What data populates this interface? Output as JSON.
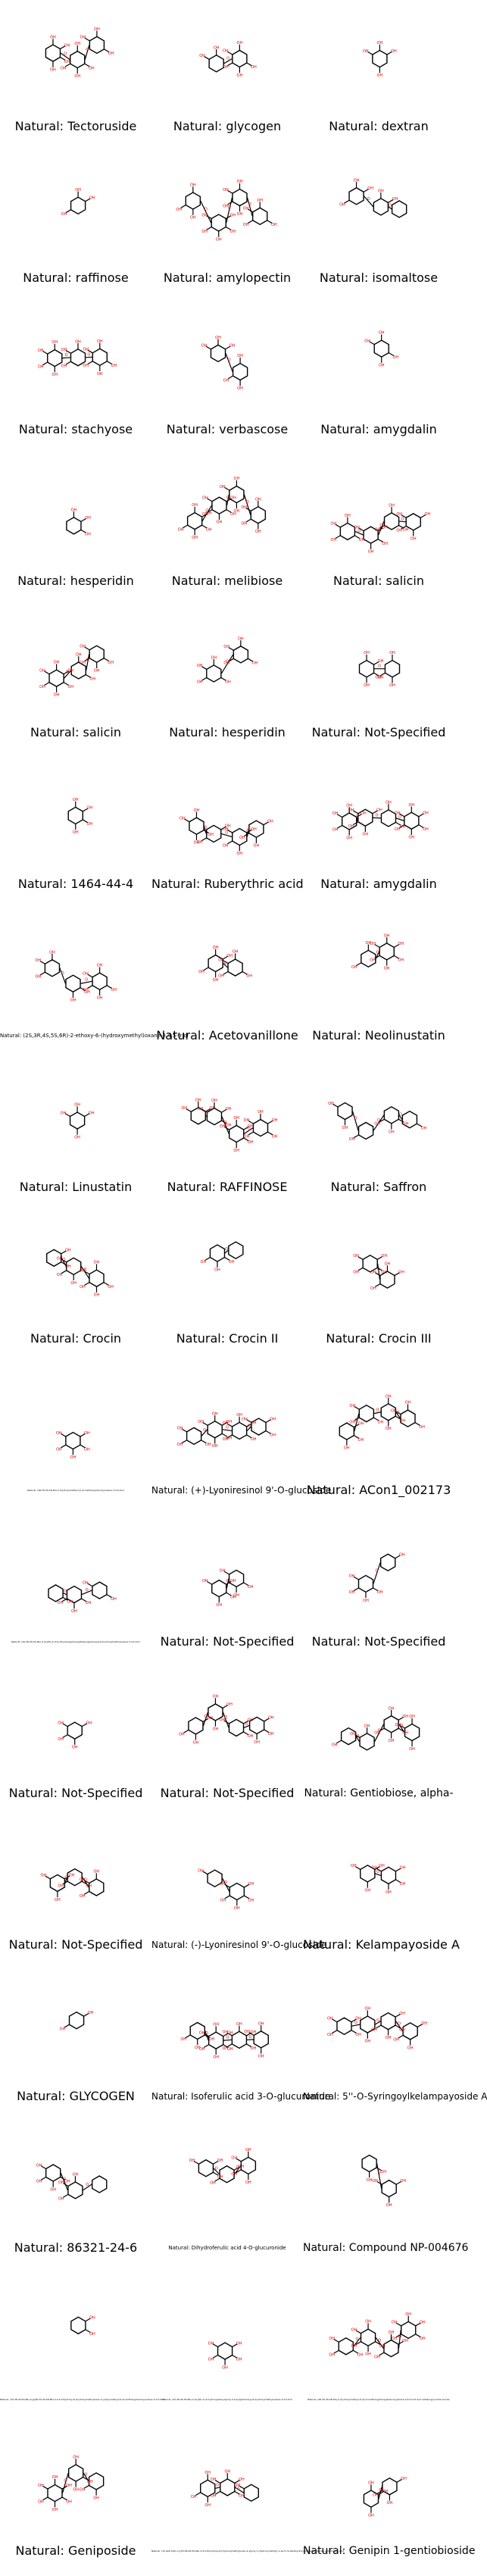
{
  "prefix": "Natural: ",
  "items": [
    {
      "name": "Tectoruside"
    },
    {
      "name": "glycogen"
    },
    {
      "name": "dextran"
    },
    {
      "name": "raffinose"
    },
    {
      "name": "amylopectin"
    },
    {
      "name": "isomaltose"
    },
    {
      "name": "stachyose"
    },
    {
      "name": "verbascose"
    },
    {
      "name": "amygdalin"
    },
    {
      "name": "hesperidin"
    },
    {
      "name": "melibiose"
    },
    {
      "name": "salicin"
    },
    {
      "name": "salicin"
    },
    {
      "name": "hesperidin"
    },
    {
      "name": "Not-Specified"
    },
    {
      "name": "1464-44-4"
    },
    {
      "name": "Ruberythric acid"
    },
    {
      "name": "amygdalin"
    },
    {
      "name": "(2S,3R,4S,5S,6R)-2-ethoxy-6-(hydroxymethyl)oxane-3,4,5-triol"
    },
    {
      "name": "Acetovanillone"
    },
    {
      "name": "Neolinustatin"
    },
    {
      "name": "Linustatin"
    },
    {
      "name": "RAFFINOSE"
    },
    {
      "name": "Saffron"
    },
    {
      "name": "Crocin"
    },
    {
      "name": "Crocin II"
    },
    {
      "name": "Crocin III"
    },
    {
      "name": "(2R,3S,4S,5R,6S)-2-(hydroxymethyl)-6-(4-methoxyphenoxy)oxane-3,4,5-triol"
    },
    {
      "name": "(+)-Lyoniresinol 9'-O-glucoside"
    },
    {
      "name": "ACon1_002173"
    },
    {
      "name": "(2S,3R,4S,5S,6R)-2-[4-[(E)-2-(3,5-dihydroxyphenyl)ethenyl]phenoxy]-6-(hydroxymethyl)oxane-3,4,5-triol"
    },
    {
      "name": "Not-Specified"
    },
    {
      "name": "Not-Specified"
    },
    {
      "name": "Not-Specified"
    },
    {
      "name": "Not-Specified"
    },
    {
      "name": "Gentiobiose, alpha-"
    },
    {
      "name": "Not-Specified"
    },
    {
      "name": "(-)-Lyoniresinol 9'-O-glucoside"
    },
    {
      "name": "Kelampayoside A"
    },
    {
      "name": "GLYCOGEN"
    },
    {
      "name": "Isoferulic acid 3-O-glucuronide"
    },
    {
      "name": "5''-O-Syringoylkelampayoside A"
    },
    {
      "name": "86321-24-6"
    },
    {
      "name": "Dihydroferulic acid 4-O-glucuronide"
    },
    {
      "name": "Compound NP-004676"
    },
    {
      "name": "(2S,3R,4S,5S,6R)-2-[[(2R,3S,4S,5R,6R)-3,4,5-trihydroxy-6-(hydroxymethyl)oxan-2-yl]oxymethyl]-6-(4-methoxyphenoxy)oxane-3,4,5-triol"
    },
    {
      "name": "(2S,3R,4S,5S,6R)-2-[2-[(E)-3-(4-hydroxyphenyl)prop-2-enoyl]phenoxy]-6-(hydroxymethyl)oxane-3,4,5-triol"
    },
    {
      "name": "(2R,3S,4S,5R,6S)-2-(hydroxymethyl)-6-[4-(3-methoxyphenyl)phenoxy]oxane-3,4,5-triol and related glycoside isomer"
    },
    {
      "name": "Geniposide"
    },
    {
      "name": "(1S,4aS,7aS)-1-[(2S,3R,4S,5S,6R)-3,4,5-trihydroxy-6-(hydroxymethyl)oxan-2-yl]oxy-7-(hydroxymethyl)-1,4a,5,7a-tetrahydrocyclopenta[c]pyran-4-carboxylic acid"
    },
    {
      "name": "Genipin 1-gentiobioside"
    }
  ]
}
